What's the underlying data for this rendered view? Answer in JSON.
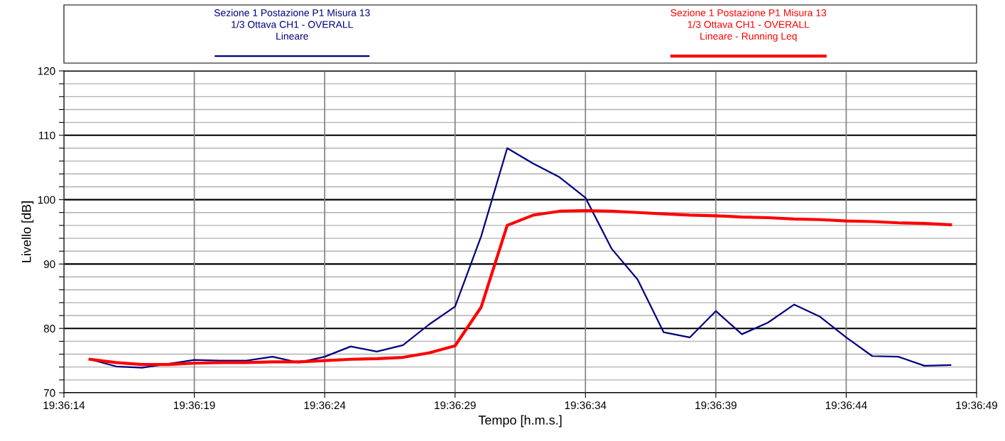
{
  "chart_data": {
    "type": "line",
    "xlabel": "Tempo [h.m.s.]",
    "ylabel": "Livello [dB]",
    "x": [
      19.6041667,
      19.6044444,
      19.6047222,
      19.605,
      19.6052778,
      19.6055556,
      19.6058333,
      19.6061111,
      19.6063889,
      19.6066667,
      19.6069444,
      19.6072222,
      19.6075,
      19.6077778,
      19.6080556,
      19.6083333,
      19.6086111,
      19.6088889,
      19.6091667,
      19.6094444,
      19.6097222,
      19.61,
      19.6102778,
      19.6105556,
      19.6108333,
      19.6111111,
      19.6113889,
      19.6116667,
      19.6119444,
      19.6122222,
      19.6125,
      19.6127778,
      19.6130556,
      19.6133333
    ],
    "series": [
      {
        "name": "Sezione 1 Postazione P1 Misura 13\n1/3 Ottava CH1 - OVERALL\nLineare",
        "color": "#000080",
        "values": [
          75.2,
          74.1,
          73.9,
          74.5,
          75.1,
          75.0,
          75.0,
          75.6,
          74.7,
          75.6,
          77.2,
          76.4,
          77.4,
          80.6,
          83.4,
          94.3,
          108.0,
          105.6,
          103.5,
          100.3,
          92.4,
          87.6,
          79.4,
          78.6,
          82.7,
          79.1,
          80.9,
          83.7,
          81.8,
          78.6,
          75.7,
          75.6,
          74.2,
          74.3
        ]
      },
      {
        "name": "Sezione 1 Postazione P1 Misura 13\n1/3 Ottava CH1 - OVERALL\nLineare - Running Leq",
        "color": "#ff0000",
        "values": [
          75.2,
          74.7,
          74.4,
          74.4,
          74.6,
          74.7,
          74.7,
          74.8,
          74.8,
          75.0,
          75.2,
          75.3,
          75.5,
          76.2,
          77.3,
          83.3,
          96.0,
          97.6,
          98.2,
          98.3,
          98.2,
          98.0,
          97.8,
          97.6,
          97.5,
          97.3,
          97.2,
          97.0,
          96.9,
          96.7,
          96.6,
          96.4,
          96.3,
          96.1
        ]
      }
    ],
    "xlim": [
      19.6038889,
      19.6136111
    ],
    "xticks": [
      {
        "value": 19.6038889,
        "label": "19:36:14"
      },
      {
        "value": 19.6052778,
        "label": "19:36:19"
      },
      {
        "value": 19.6066667,
        "label": "19:36:24"
      },
      {
        "value": 19.6080556,
        "label": "19:36:29"
      },
      {
        "value": 19.6094444,
        "label": "19:36:34"
      },
      {
        "value": 19.6108333,
        "label": "19:36:39"
      },
      {
        "value": 19.6122222,
        "label": "19:36:44"
      },
      {
        "value": 19.6136111,
        "label": "19:36:49"
      }
    ],
    "ylim": [
      70,
      120
    ],
    "yticks": [
      70,
      {
        "value": 72,
        "label": null
      },
      {
        "value": 74,
        "label": null
      },
      {
        "value": 76,
        "label": null
      },
      {
        "value": 78,
        "label": null
      },
      80,
      {
        "value": 82,
        "label": null
      },
      {
        "value": 84,
        "label": null
      },
      {
        "value": 86,
        "label": null
      },
      {
        "value": 88,
        "label": null
      },
      90,
      {
        "value": 92,
        "label": null
      },
      {
        "value": 94,
        "label": null
      },
      {
        "value": 96,
        "label": null
      },
      {
        "value": 98,
        "label": null
      },
      100,
      {
        "value": 102,
        "label": null
      },
      {
        "value": 104,
        "label": null
      },
      {
        "value": 106,
        "label": null
      },
      {
        "value": 108,
        "label": null
      },
      110,
      {
        "value": 112,
        "label": null
      },
      {
        "value": 114,
        "label": null
      },
      {
        "value": 116,
        "label": null
      },
      {
        "value": 118,
        "label": null
      },
      120
    ],
    "grid": true,
    "legend": "top",
    "marker": "none",
    "line_style": "solid"
  }
}
